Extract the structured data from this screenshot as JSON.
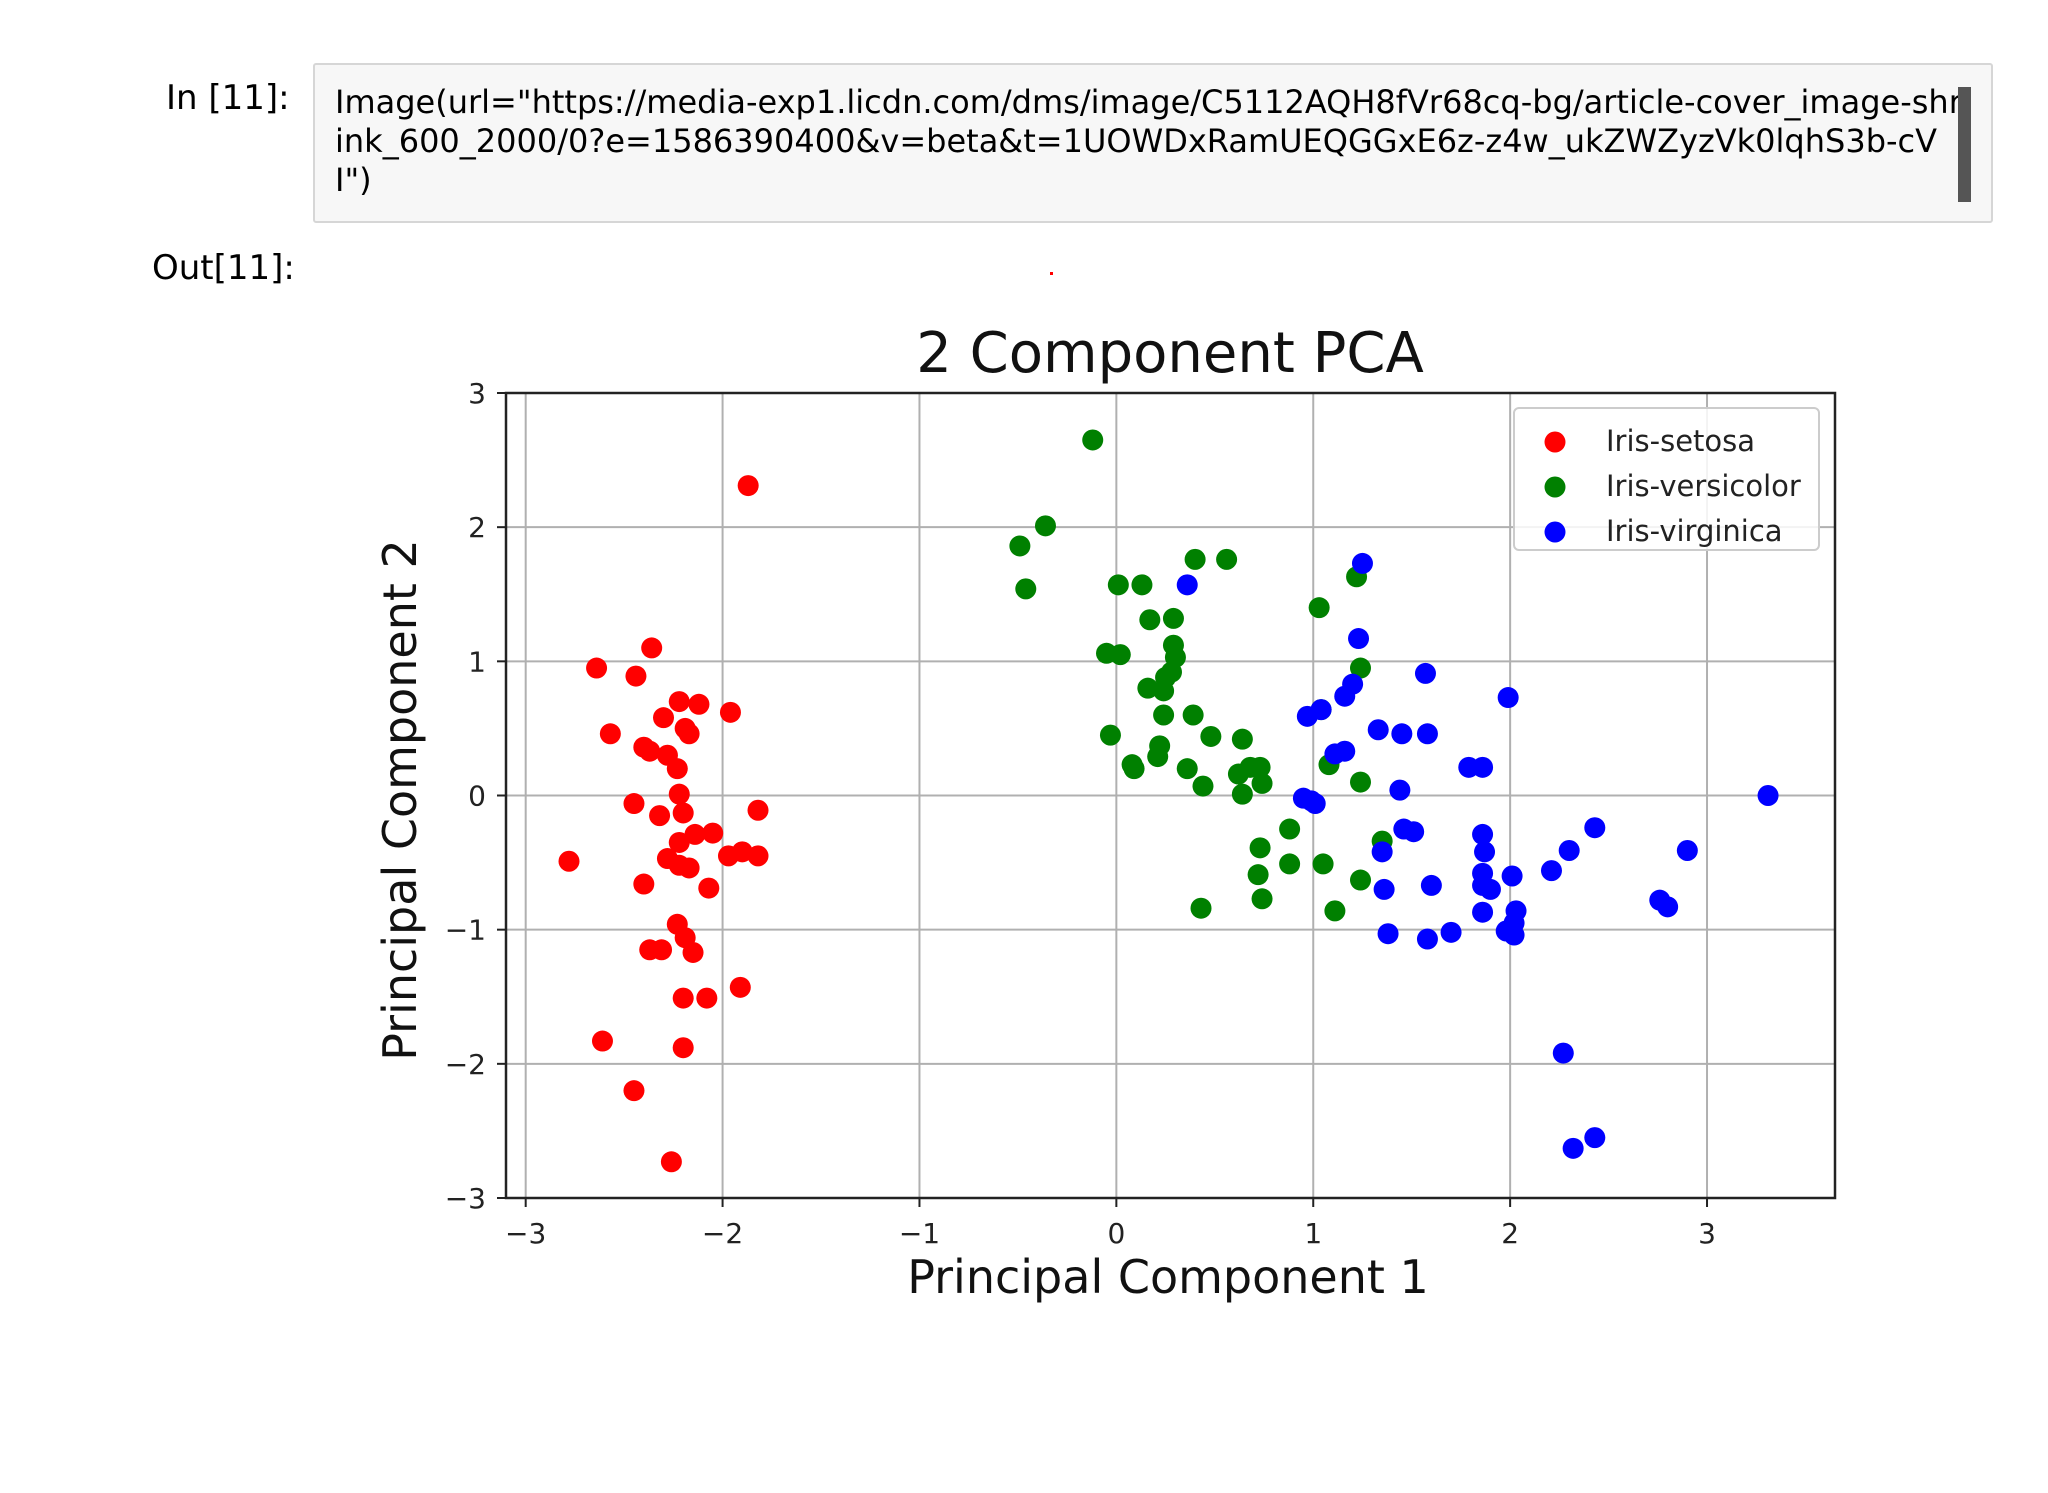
{
  "notebook": {
    "in_prompt": "In [11]:",
    "out_prompt": "Out[11]:",
    "code": "Image(url=\"https://media-exp1.licdn.com/dms/image/C5112AQH8fVr68cq-bg/article-cover_image-shrink_600_2000/0?e=1586390400&v=beta&t=1UOWDxRamUEQGGxE6z-z4w_ukZWZyzVk0lqhS3b-cVI\")"
  },
  "colors": {
    "setosa": "#ff0000",
    "versicolor": "#008000",
    "virginica": "#0000ff",
    "grid": "#b0b0b0",
    "cell_background": "#f7f7f7"
  },
  "chart_data": {
    "type": "scatter",
    "title": "2 Component PCA",
    "xlabel": "Principal Component 1",
    "ylabel": "Principal Component 2",
    "xlim": [
      -3.1,
      3.65
    ],
    "ylim": [
      -3,
      3
    ],
    "xticks": [
      -3,
      -2,
      -1,
      0,
      1,
      2,
      3
    ],
    "yticks": [
      -3,
      -2,
      -1,
      0,
      1,
      2,
      3
    ],
    "xtick_labels": [
      "−3",
      "−2",
      "−1",
      "0",
      "1",
      "2",
      "3"
    ],
    "ytick_labels": [
      "−3",
      "−2",
      "−1",
      "0",
      "1",
      "2",
      "3"
    ],
    "grid": true,
    "legend_position": "top-right",
    "series": [
      {
        "name": "Iris-setosa",
        "color": "#ff0000",
        "points": [
          [
            -1.87,
            2.31
          ],
          [
            -2.36,
            1.1
          ],
          [
            -2.64,
            0.95
          ],
          [
            -2.44,
            0.89
          ],
          [
            -2.22,
            0.7
          ],
          [
            -2.12,
            0.68
          ],
          [
            -1.96,
            0.62
          ],
          [
            -2.3,
            0.58
          ],
          [
            -2.19,
            0.5
          ],
          [
            -2.17,
            0.46
          ],
          [
            -2.57,
            0.46
          ],
          [
            -2.4,
            0.36
          ],
          [
            -2.37,
            0.33
          ],
          [
            -2.28,
            0.3
          ],
          [
            -2.23,
            0.2
          ],
          [
            -2.22,
            0.01
          ],
          [
            -2.45,
            -0.06
          ],
          [
            -2.32,
            -0.15
          ],
          [
            -2.2,
            -0.13
          ],
          [
            -2.14,
            -0.29
          ],
          [
            -2.22,
            -0.35
          ],
          [
            -2.05,
            -0.28
          ],
          [
            -1.82,
            -0.11
          ],
          [
            -2.28,
            -0.47
          ],
          [
            -2.22,
            -0.52
          ],
          [
            -2.17,
            -0.54
          ],
          [
            -1.97,
            -0.45
          ],
          [
            -1.9,
            -0.42
          ],
          [
            -1.82,
            -0.45
          ],
          [
            -2.78,
            -0.49
          ],
          [
            -2.4,
            -0.66
          ],
          [
            -2.07,
            -0.69
          ],
          [
            -2.23,
            -0.96
          ],
          [
            -2.19,
            -1.06
          ],
          [
            -2.37,
            -1.15
          ],
          [
            -2.31,
            -1.15
          ],
          [
            -2.15,
            -1.17
          ],
          [
            -2.2,
            -1.51
          ],
          [
            -2.08,
            -1.51
          ],
          [
            -1.91,
            -1.43
          ],
          [
            -2.61,
            -1.83
          ],
          [
            -2.2,
            -1.88
          ],
          [
            -2.45,
            -2.2
          ],
          [
            -2.26,
            -2.73
          ]
        ]
      },
      {
        "name": "Iris-versicolor",
        "color": "#008000",
        "points": [
          [
            -0.12,
            2.65
          ],
          [
            -0.36,
            2.01
          ],
          [
            -0.49,
            1.86
          ],
          [
            -0.46,
            1.54
          ],
          [
            0.01,
            1.57
          ],
          [
            0.13,
            1.57
          ],
          [
            0.4,
            1.76
          ],
          [
            0.56,
            1.76
          ],
          [
            0.17,
            1.31
          ],
          [
            0.29,
            1.32
          ],
          [
            0.29,
            1.12
          ],
          [
            -0.05,
            1.06
          ],
          [
            0.02,
            1.05
          ],
          [
            0.3,
            1.03
          ],
          [
            0.28,
            0.92
          ],
          [
            0.25,
            0.88
          ],
          [
            0.16,
            0.8
          ],
          [
            0.24,
            0.78
          ],
          [
            0.24,
            0.6
          ],
          [
            0.39,
            0.6
          ],
          [
            -0.03,
            0.45
          ],
          [
            0.48,
            0.44
          ],
          [
            0.64,
            0.42
          ],
          [
            0.22,
            0.37
          ],
          [
            0.21,
            0.29
          ],
          [
            0.08,
            0.23
          ],
          [
            0.09,
            0.2
          ],
          [
            0.36,
            0.2
          ],
          [
            0.62,
            0.16
          ],
          [
            0.68,
            0.21
          ],
          [
            0.73,
            0.21
          ],
          [
            0.44,
            0.07
          ],
          [
            0.64,
            0.01
          ],
          [
            0.74,
            0.09
          ],
          [
            1.03,
            1.4
          ],
          [
            1.22,
            1.63
          ],
          [
            1.24,
            0.95
          ],
          [
            1.04,
            0.64
          ],
          [
            1.08,
            0.23
          ],
          [
            1.24,
            0.1
          ],
          [
            0.73,
            -0.39
          ],
          [
            0.88,
            -0.25
          ],
          [
            1.35,
            -0.34
          ],
          [
            0.72,
            -0.59
          ],
          [
            0.88,
            -0.51
          ],
          [
            1.05,
            -0.51
          ],
          [
            1.24,
            -0.63
          ],
          [
            0.74,
            -0.77
          ],
          [
            0.43,
            -0.84
          ],
          [
            1.11,
            -0.86
          ]
        ]
      },
      {
        "name": "Iris-virginica",
        "color": "#0000ff",
        "points": [
          [
            0.36,
            1.57
          ],
          [
            1.25,
            1.73
          ],
          [
            1.23,
            1.17
          ],
          [
            1.57,
            0.91
          ],
          [
            1.99,
            0.73
          ],
          [
            1.2,
            0.83
          ],
          [
            1.16,
            0.74
          ],
          [
            0.97,
            0.59
          ],
          [
            1.04,
            0.64
          ],
          [
            1.33,
            0.49
          ],
          [
            1.45,
            0.46
          ],
          [
            1.58,
            0.46
          ],
          [
            1.11,
            0.31
          ],
          [
            1.16,
            0.33
          ],
          [
            1.79,
            0.21
          ],
          [
            1.86,
            0.21
          ],
          [
            1.44,
            0.04
          ],
          [
            0.95,
            -0.02
          ],
          [
            0.99,
            -0.04
          ],
          [
            1.01,
            -0.06
          ],
          [
            3.31,
            0.0
          ],
          [
            1.46,
            -0.25
          ],
          [
            1.51,
            -0.27
          ],
          [
            1.86,
            -0.29
          ],
          [
            1.87,
            -0.42
          ],
          [
            1.35,
            -0.42
          ],
          [
            2.43,
            -0.24
          ],
          [
            2.9,
            -0.41
          ],
          [
            2.3,
            -0.41
          ],
          [
            2.21,
            -0.56
          ],
          [
            2.01,
            -0.6
          ],
          [
            1.86,
            -0.58
          ],
          [
            1.86,
            -0.67
          ],
          [
            1.9,
            -0.7
          ],
          [
            1.6,
            -0.67
          ],
          [
            1.36,
            -0.7
          ],
          [
            2.76,
            -0.78
          ],
          [
            2.8,
            -0.83
          ],
          [
            1.86,
            -0.87
          ],
          [
            2.03,
            -0.86
          ],
          [
            2.02,
            -0.95
          ],
          [
            1.98,
            -1.01
          ],
          [
            2.02,
            -1.04
          ],
          [
            1.7,
            -1.02
          ],
          [
            1.38,
            -1.03
          ],
          [
            1.58,
            -1.07
          ],
          [
            2.27,
            -1.92
          ],
          [
            2.32,
            -2.63
          ],
          [
            2.43,
            -2.55
          ]
        ]
      }
    ]
  }
}
